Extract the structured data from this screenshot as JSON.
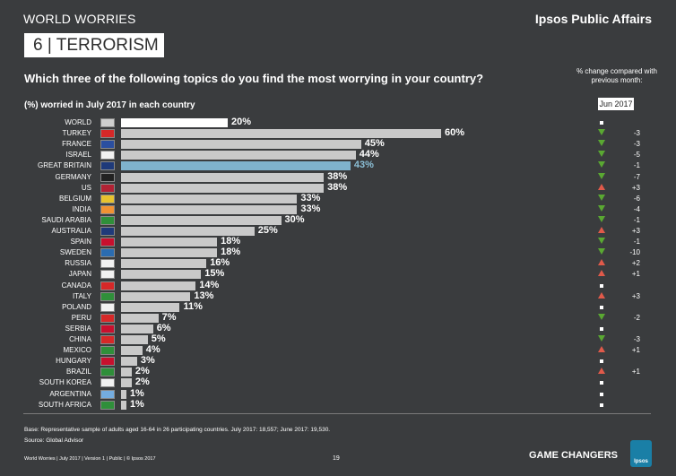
{
  "header": {
    "section_label": "WORLD WORRIES",
    "brand": "Ipsos Public Affairs",
    "topic": "6 | TERRORISM"
  },
  "question": "Which three of the following topics do you find the most worrying in your country?",
  "change_note": "% change compared with previous month:",
  "subhead": "(%) worried in July 2017 in each country",
  "month_label": "Jun 2017",
  "colors": {
    "background": "#3a3c3e",
    "bar": "#c9c9c9",
    "world_bar": "#ffffff",
    "highlight_bar": "#7fb2cc",
    "up_arrow": "#e05a4a",
    "down_arrow": "#5aa832"
  },
  "chart_data": {
    "type": "bar",
    "orientation": "horizontal",
    "title": "",
    "xlabel": "",
    "ylabel": "",
    "xlim": [
      0,
      100
    ],
    "highlighted": "GREAT BRITAIN",
    "categories": [
      "WORLD",
      "TURKEY",
      "FRANCE",
      "ISRAEL",
      "GREAT BRITAIN",
      "GERMANY",
      "US",
      "BELGIUM",
      "INDIA",
      "SAUDI ARABIA",
      "AUSTRALIA",
      "SPAIN",
      "SWEDEN",
      "RUSSIA",
      "JAPAN",
      "CANADA",
      "ITALY",
      "POLAND",
      "PERU",
      "SERBIA",
      "CHINA",
      "MEXICO",
      "HUNGARY",
      "BRAZIL",
      "SOUTH KOREA",
      "ARGENTINA",
      "SOUTH AFRICA"
    ],
    "values": [
      20,
      60,
      45,
      44,
      43,
      38,
      38,
      33,
      33,
      30,
      25,
      18,
      18,
      16,
      15,
      14,
      13,
      11,
      7,
      6,
      5,
      4,
      3,
      2,
      2,
      1,
      1
    ],
    "labels": [
      "20%",
      "60%",
      "45%",
      "44%",
      "43%",
      "38%",
      "38%",
      "33%",
      "33%",
      "30%",
      "25%",
      "18%",
      "18%",
      "16%",
      "15%",
      "14%",
      "13%",
      "11%",
      "7%",
      "6%",
      "5%",
      "4%",
      "3%",
      "2%",
      "2%",
      "1%",
      "1%"
    ],
    "change_direction": [
      "none",
      "down",
      "down",
      "down",
      "down",
      "down",
      "up",
      "down",
      "down",
      "down",
      "up",
      "down",
      "down",
      "up",
      "up",
      "none",
      "up",
      "none",
      "down",
      "none",
      "down",
      "up",
      "none",
      "up",
      "none",
      "none",
      "none"
    ],
    "change_values": [
      "",
      "-3",
      "-3",
      "-5",
      "-1",
      "-7",
      "+3",
      "-6",
      "-4",
      "-1",
      "+3",
      "-1",
      "-10",
      "+2",
      "+1",
      "",
      "+3",
      "",
      "-2",
      "",
      "-3",
      "+1",
      "",
      "+1",
      "",
      "",
      ""
    ]
  },
  "footer": {
    "base": "Base: Representative sample of adults aged 16-64 in 26 participating countries. July 2017: 18,557; June 2017: 19,530.",
    "source": "Source: Global Advisor",
    "left": "World Worries | July 2017 | Version 1 | Public | © Ipsos 2017",
    "page": "19",
    "tagline": "GAME CHANGERS",
    "logo": "Ipsos"
  }
}
